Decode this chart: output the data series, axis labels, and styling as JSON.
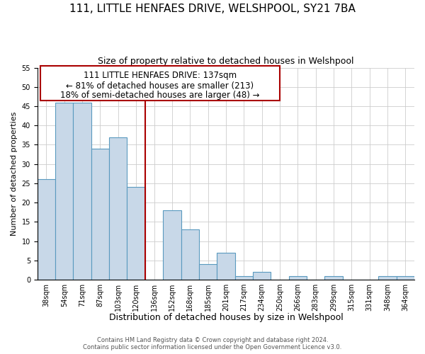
{
  "title": "111, LITTLE HENFAES DRIVE, WELSHPOOL, SY21 7BA",
  "subtitle": "Size of property relative to detached houses in Welshpool",
  "xlabel": "Distribution of detached houses by size in Welshpool",
  "ylabel": "Number of detached properties",
  "footnote1": "Contains HM Land Registry data © Crown copyright and database right 2024.",
  "footnote2": "Contains public sector information licensed under the Open Government Licence v3.0.",
  "bin_labels": [
    "38sqm",
    "54sqm",
    "71sqm",
    "87sqm",
    "103sqm",
    "120sqm",
    "136sqm",
    "152sqm",
    "168sqm",
    "185sqm",
    "201sqm",
    "217sqm",
    "234sqm",
    "250sqm",
    "266sqm",
    "283sqm",
    "299sqm",
    "315sqm",
    "331sqm",
    "348sqm",
    "364sqm"
  ],
  "bar_heights": [
    26,
    46,
    46,
    34,
    37,
    24,
    0,
    18,
    13,
    4,
    7,
    1,
    2,
    0,
    1,
    0,
    1,
    0,
    0,
    1,
    1
  ],
  "bar_color": "#c8d8e8",
  "bar_edge_color": "#5a9abf",
  "vline_x": 6,
  "vline_color": "#aa0000",
  "ylim": [
    0,
    55
  ],
  "yticks": [
    0,
    5,
    10,
    15,
    20,
    25,
    30,
    35,
    40,
    45,
    50,
    55
  ],
  "annotation_title": "111 LITTLE HENFAES DRIVE: 137sqm",
  "annotation_line1": "← 81% of detached houses are smaller (213)",
  "annotation_line2": "18% of semi-detached houses are larger (48) →",
  "title_fontsize": 11,
  "subtitle_fontsize": 9,
  "xlabel_fontsize": 9,
  "ylabel_fontsize": 8,
  "tick_fontsize": 7,
  "annotation_fontsize": 8.5
}
